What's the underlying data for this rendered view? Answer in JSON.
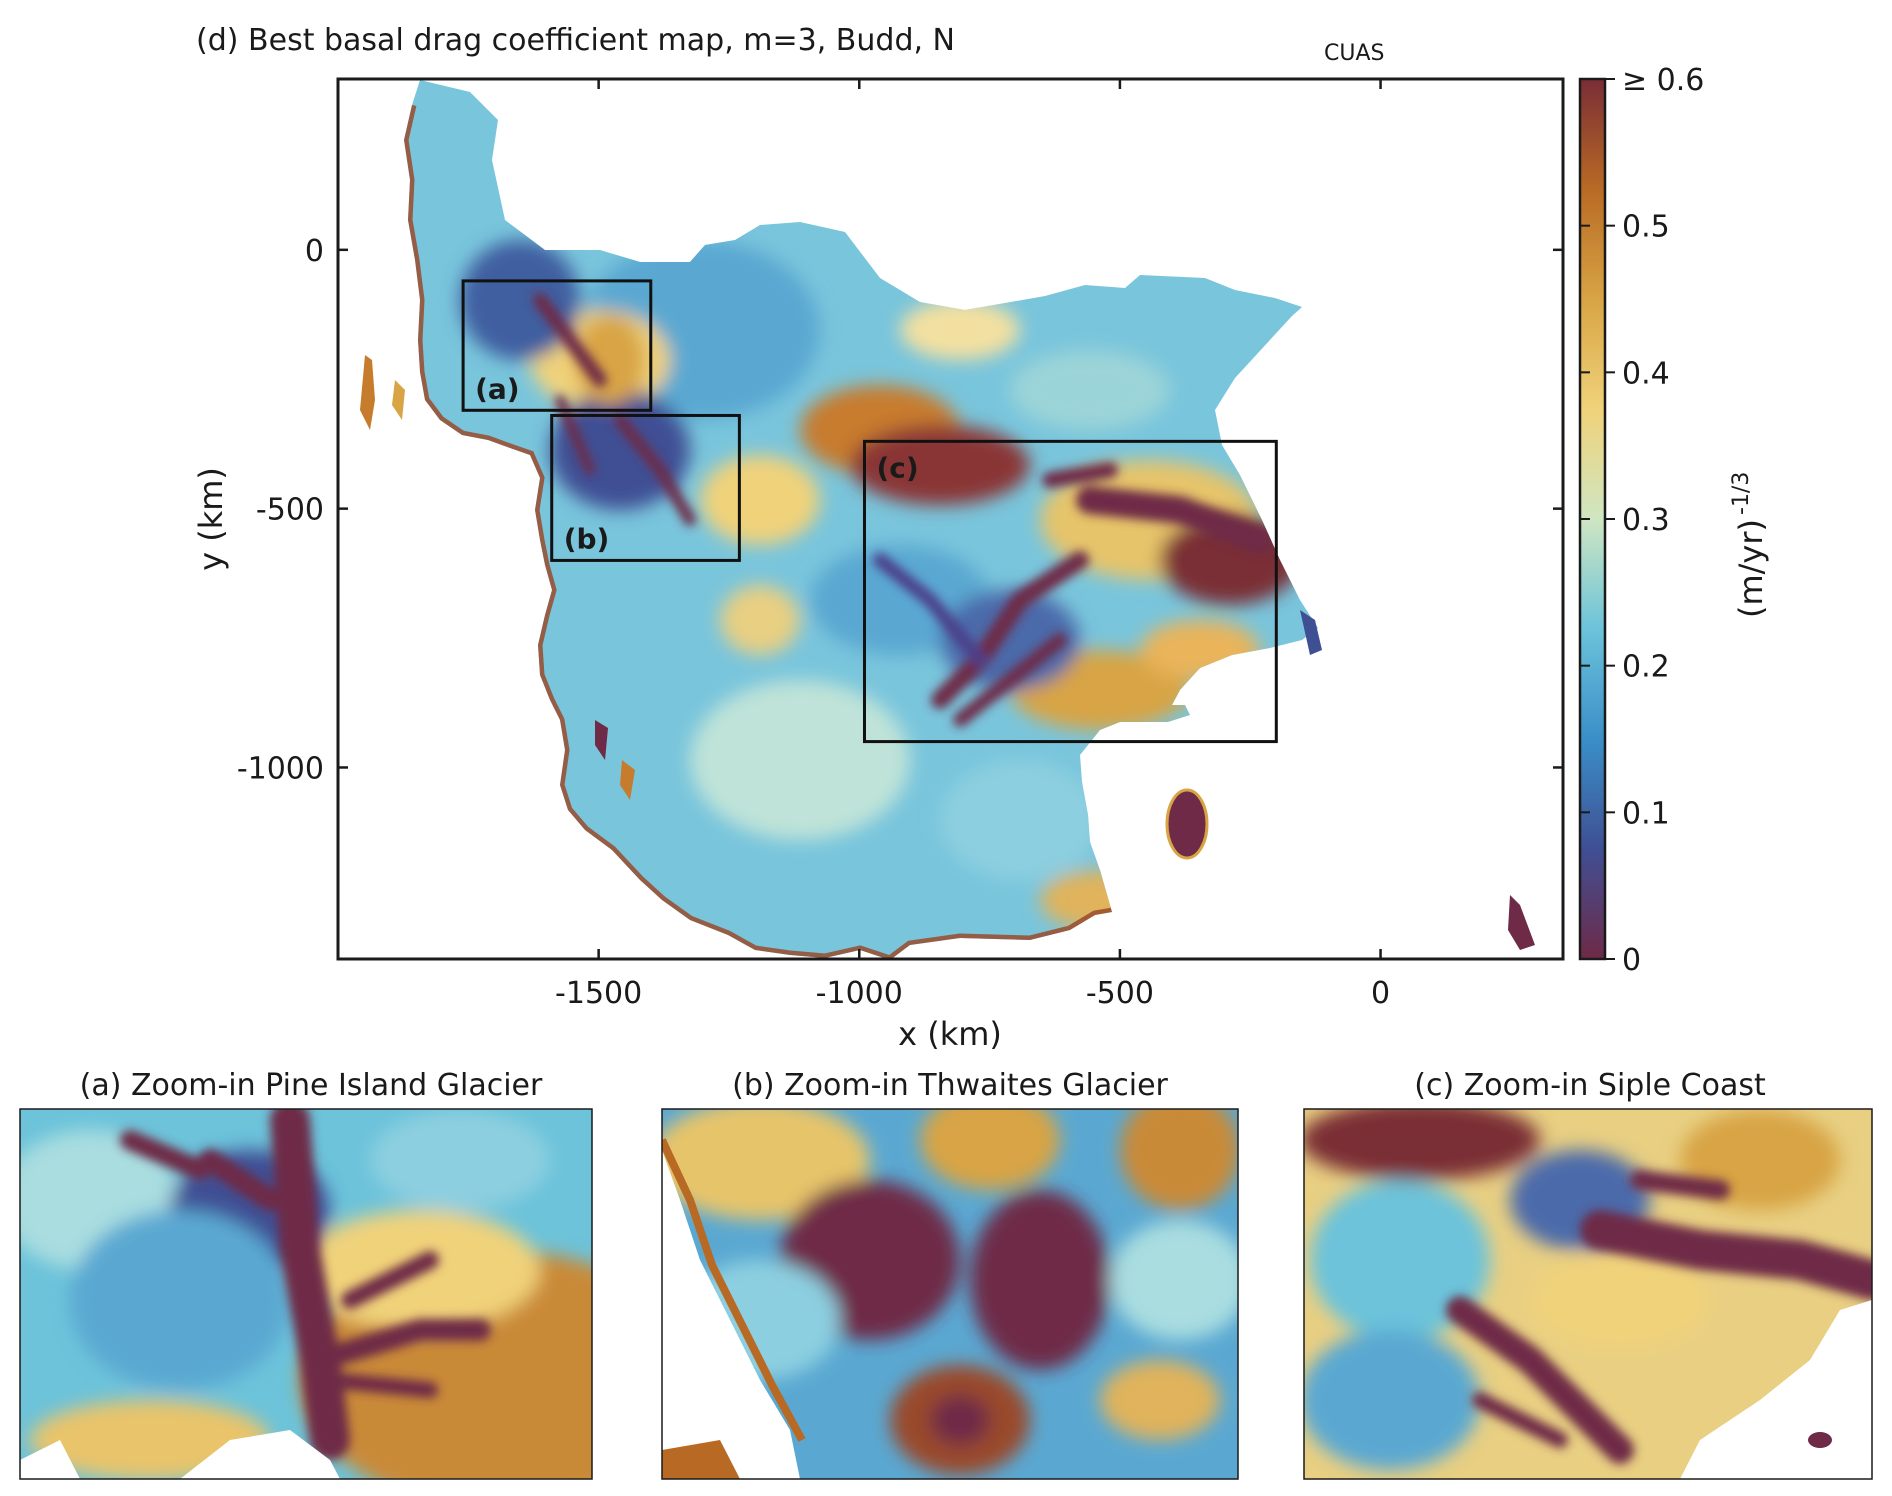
{
  "chart_data": [
    {
      "type": "heatmap",
      "panel": "d",
      "title": {
        "prefix": "(d) Best basal drag coefficient map, m=3, Budd, N",
        "subscript": "CUAS"
      },
      "xlabel": "x (km)",
      "ylabel": "y (km)",
      "xlim": [
        -2000,
        350
      ],
      "ylim": [
        -1370,
        330
      ],
      "xticks": [
        -1500,
        -1000,
        -500,
        0
      ],
      "xtick_labels": [
        "-1500",
        "-1000",
        "-500",
        "0"
      ],
      "yticks": [
        0,
        -500,
        -1000
      ],
      "ytick_labels": [
        "0",
        "-500",
        "-1000"
      ],
      "colorbar": {
        "label": "(m/yr)",
        "label_superscript": "-1/3",
        "range": [
          0,
          0.6
        ],
        "ticks": [
          0,
          0.1,
          0.2,
          0.3,
          0.4,
          0.5,
          0.6
        ],
        "tick_labels": [
          "0",
          "0.1",
          "0.2",
          "0.3",
          "0.4",
          "0.5",
          "≥ 0.6"
        ],
        "colors": [
          "#6e2a47",
          "#3f4f94",
          "#3a8fc8",
          "#6cc3da",
          "#cfe6c2",
          "#f0d27a",
          "#d8a444",
          "#b86a25",
          "#7a2d36"
        ]
      },
      "zoom_boxes": [
        {
          "label": "(a)",
          "x": [
            -1760,
            -1400
          ],
          "y": [
            -310,
            -60
          ]
        },
        {
          "label": "(b)",
          "x": [
            -1590,
            -1230
          ],
          "y": [
            -600,
            -320
          ]
        },
        {
          "label": "(c)",
          "x": [
            -990,
            -200
          ],
          "y": [
            -950,
            -370
          ]
        }
      ]
    }
  ],
  "zoom_panels": [
    {
      "id": "a",
      "title": "(a) Zoom-in Pine Island Glacier"
    },
    {
      "id": "b",
      "title": "(b) Zoom-in Thwaites Glacier"
    },
    {
      "id": "c",
      "title": "(c) Zoom-in Siple Coast"
    }
  ]
}
